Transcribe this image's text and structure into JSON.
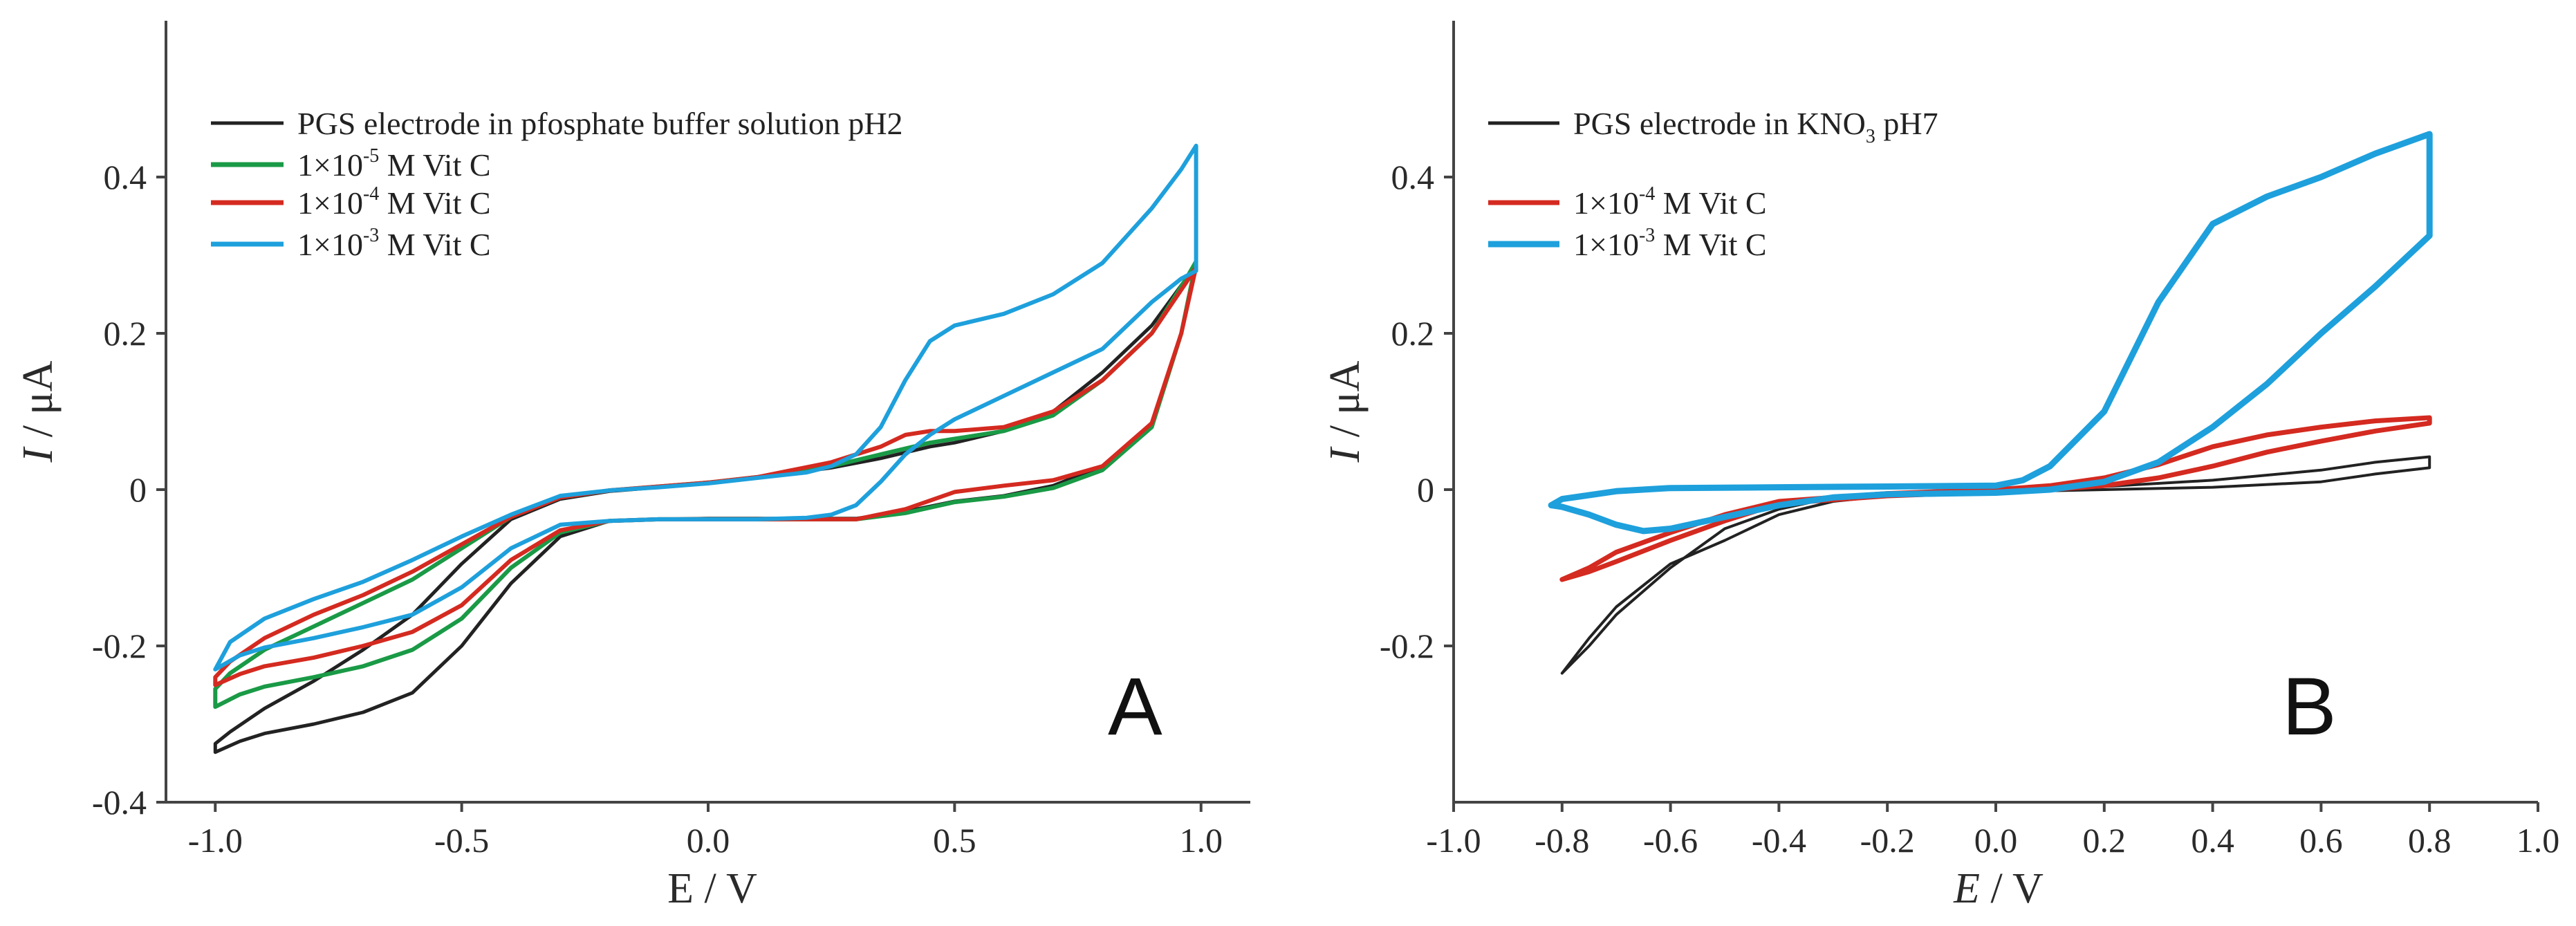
{
  "chart_data": [
    {
      "type": "line",
      "panel": "A",
      "xlabel": "E / V",
      "ylabel_italic": "I",
      "ylabel_rest": " / μA",
      "xlim": [
        -1.1,
        1.1
      ],
      "ylim": [
        -0.4,
        0.6
      ],
      "xticks": [
        -1.0,
        -0.5,
        0.0,
        0.5,
        1.0
      ],
      "xtick_labels": [
        "-1.0",
        "-0.5",
        "0.0",
        "0.5",
        "1.0"
      ],
      "yticks": [
        -0.4,
        -0.2,
        0,
        0.2,
        0.4
      ],
      "ytick_labels": [
        "-0.4",
        "-0.2",
        "0",
        "0.2",
        "0.4"
      ],
      "legend": [
        {
          "text": "PGS electrode in pfosphate buffer solution pH2",
          "base": "",
          "sup": "",
          "rest": "",
          "color": "#222222"
        },
        {
          "text": "",
          "base": "1×10",
          "sup": "-5",
          "rest": " M Vit C",
          "color": "#1a9a46"
        },
        {
          "text": "",
          "base": "1×10",
          "sup": "-4",
          "rest": " M Vit C",
          "color": "#d42a20"
        },
        {
          "text": "",
          "base": "1×10",
          "sup": "-3",
          "rest": " M Vit C",
          "color": "#1ea0dc"
        }
      ],
      "series": [
        {
          "name": "PGS electrode in pfosphate buffer solution pH2",
          "color": "#222222",
          "x": [
            -1.0,
            -0.95,
            -0.9,
            -0.8,
            -0.7,
            -0.6,
            -0.5,
            -0.4,
            -0.3,
            -0.2,
            -0.1,
            0.0,
            0.1,
            0.2,
            0.3,
            0.4,
            0.5,
            0.6,
            0.7,
            0.8,
            0.9,
            0.96,
            0.99,
            0.97,
            0.9,
            0.8,
            0.7,
            0.6,
            0.5,
            0.45,
            0.35,
            0.25,
            0.1,
            0.0,
            -0.1,
            -0.2,
            -0.3,
            -0.4,
            -0.5,
            -0.6,
            -0.7,
            -0.8,
            -0.9,
            -0.97,
            -1.0,
            -1.0
          ],
          "y": [
            -0.336,
            -0.322,
            -0.312,
            -0.3,
            -0.285,
            -0.26,
            -0.2,
            -0.12,
            -0.06,
            -0.04,
            -0.038,
            -0.037,
            -0.037,
            -0.037,
            -0.037,
            -0.028,
            -0.015,
            -0.008,
            0.005,
            0.03,
            0.085,
            0.2,
            0.285,
            0.27,
            0.21,
            0.15,
            0.1,
            0.075,
            0.06,
            0.055,
            0.04,
            0.028,
            0.015,
            0.008,
            0.003,
            -0.002,
            -0.012,
            -0.038,
            -0.095,
            -0.16,
            -0.205,
            -0.245,
            -0.28,
            -0.31,
            -0.325,
            -0.336
          ]
        },
        {
          "name": "1×10-5 M Vit C",
          "color": "#1a9a46",
          "x": [
            -1.0,
            -0.95,
            -0.9,
            -0.8,
            -0.7,
            -0.6,
            -0.5,
            -0.4,
            -0.3,
            -0.2,
            -0.1,
            0.0,
            0.1,
            0.2,
            0.3,
            0.4,
            0.5,
            0.6,
            0.7,
            0.8,
            0.9,
            0.96,
            0.99,
            0.97,
            0.9,
            0.8,
            0.7,
            0.6,
            0.5,
            0.45,
            0.35,
            0.25,
            0.1,
            0.0,
            -0.1,
            -0.2,
            -0.3,
            -0.4,
            -0.5,
            -0.6,
            -0.7,
            -0.8,
            -0.9,
            -0.97,
            -1.0,
            -1.0
          ],
          "y": [
            -0.278,
            -0.262,
            -0.252,
            -0.24,
            -0.226,
            -0.205,
            -0.165,
            -0.1,
            -0.055,
            -0.04,
            -0.038,
            -0.038,
            -0.038,
            -0.038,
            -0.038,
            -0.03,
            -0.016,
            -0.009,
            0.002,
            0.025,
            0.08,
            0.2,
            0.292,
            0.27,
            0.2,
            0.14,
            0.095,
            0.075,
            0.065,
            0.06,
            0.045,
            0.03,
            0.016,
            0.009,
            0.004,
            -0.001,
            -0.01,
            -0.035,
            -0.075,
            -0.115,
            -0.145,
            -0.175,
            -0.205,
            -0.235,
            -0.255,
            -0.278
          ]
        },
        {
          "name": "1×10-4 M Vit C",
          "color": "#d42a20",
          "x": [
            -1.0,
            -0.95,
            -0.9,
            -0.8,
            -0.7,
            -0.6,
            -0.5,
            -0.4,
            -0.3,
            -0.2,
            -0.1,
            0.0,
            0.1,
            0.2,
            0.3,
            0.4,
            0.5,
            0.6,
            0.7,
            0.8,
            0.9,
            0.96,
            0.99,
            0.97,
            0.9,
            0.8,
            0.7,
            0.6,
            0.5,
            0.45,
            0.4,
            0.35,
            0.25,
            0.1,
            0.0,
            -0.1,
            -0.2,
            -0.3,
            -0.4,
            -0.5,
            -0.6,
            -0.7,
            -0.8,
            -0.9,
            -0.97,
            -1.0,
            -1.0
          ],
          "y": [
            -0.25,
            -0.236,
            -0.226,
            -0.215,
            -0.2,
            -0.182,
            -0.148,
            -0.09,
            -0.052,
            -0.04,
            -0.038,
            -0.038,
            -0.038,
            -0.038,
            -0.038,
            -0.025,
            -0.003,
            0.005,
            0.012,
            0.03,
            0.085,
            0.2,
            0.285,
            0.265,
            0.2,
            0.14,
            0.1,
            0.08,
            0.075,
            0.075,
            0.07,
            0.055,
            0.035,
            0.016,
            0.009,
            0.004,
            -0.001,
            -0.01,
            -0.035,
            -0.07,
            -0.105,
            -0.135,
            -0.16,
            -0.19,
            -0.22,
            -0.24,
            -0.25
          ]
        },
        {
          "name": "1×10-3 M Vit C",
          "color": "#1ea0dc",
          "x": [
            -1.0,
            -0.95,
            -0.9,
            -0.8,
            -0.7,
            -0.6,
            -0.5,
            -0.4,
            -0.3,
            -0.2,
            -0.1,
            0.0,
            0.1,
            0.2,
            0.25,
            0.3,
            0.35,
            0.4,
            0.45,
            0.5,
            0.6,
            0.7,
            0.8,
            0.9,
            0.96,
            0.99,
            0.99,
            0.96,
            0.9,
            0.8,
            0.7,
            0.6,
            0.5,
            0.45,
            0.4,
            0.35,
            0.3,
            0.25,
            0.2,
            0.1,
            0.0,
            -0.1,
            -0.2,
            -0.3,
            -0.4,
            -0.5,
            -0.6,
            -0.7,
            -0.8,
            -0.9,
            -0.97,
            -1.0
          ],
          "y": [
            -0.23,
            -0.212,
            -0.202,
            -0.19,
            -0.176,
            -0.16,
            -0.125,
            -0.075,
            -0.045,
            -0.04,
            -0.038,
            -0.038,
            -0.038,
            -0.036,
            -0.032,
            -0.02,
            0.01,
            0.045,
            0.07,
            0.09,
            0.12,
            0.15,
            0.18,
            0.24,
            0.27,
            0.28,
            0.44,
            0.41,
            0.36,
            0.29,
            0.25,
            0.225,
            0.21,
            0.19,
            0.14,
            0.08,
            0.045,
            0.03,
            0.022,
            0.015,
            0.008,
            0.003,
            -0.001,
            -0.008,
            -0.032,
            -0.06,
            -0.09,
            -0.118,
            -0.14,
            -0.165,
            -0.195,
            -0.23
          ]
        }
      ]
    },
    {
      "type": "line",
      "panel": "B",
      "xlabel_italic": "E",
      "xlabel_rest": " / V",
      "ylabel_italic": "I",
      "ylabel_rest": " / μA",
      "xlim": [
        -1.0,
        1.0
      ],
      "ylim": [
        -0.4,
        0.6
      ],
      "xticks": [
        -1.0,
        -0.8,
        -0.6,
        -0.4,
        -0.2,
        0.0,
        0.2,
        0.4,
        0.6,
        0.8,
        1.0
      ],
      "xtick_labels": [
        "-1.0",
        "-0.8",
        "-0.6",
        "-0.4",
        "-0.2",
        "0.0",
        "0.2",
        "0.4",
        "0.6",
        "0.8",
        "1.0"
      ],
      "yticks": [
        -0.2,
        0,
        0.2,
        0.4
      ],
      "ytick_labels": [
        "-0.2",
        "0",
        "0.2",
        "0.4"
      ],
      "legend": [
        {
          "text": "",
          "base": "PGS electrode in KNO",
          "sub": "3",
          "rest": " pH7",
          "color": "#222222"
        },
        {
          "text": "",
          "base": "1×10",
          "sup": "-4",
          "rest": " M Vit C",
          "color": "#d42a20"
        },
        {
          "text": "",
          "base": "1×10",
          "sup": "-3",
          "rest": " M Vit C",
          "color": "#1ea0dc"
        }
      ],
      "series": [
        {
          "name": "PGS electrode in KNO3 pH7",
          "color": "#222222",
          "x": [
            -0.8,
            -0.75,
            -0.7,
            -0.6,
            -0.5,
            -0.4,
            -0.3,
            -0.2,
            0.0,
            0.2,
            0.4,
            0.6,
            0.7,
            0.8,
            0.8,
            0.7,
            0.6,
            0.4,
            0.2,
            0.0,
            -0.2,
            -0.3,
            -0.4,
            -0.5,
            -0.6,
            -0.7,
            -0.75,
            -0.8
          ],
          "y": [
            -0.235,
            -0.19,
            -0.15,
            -0.095,
            -0.065,
            -0.032,
            -0.015,
            -0.008,
            -0.003,
            0.0,
            0.003,
            0.01,
            0.02,
            0.028,
            0.042,
            0.035,
            0.025,
            0.012,
            0.004,
            0.0,
            -0.005,
            -0.01,
            -0.025,
            -0.05,
            -0.1,
            -0.16,
            -0.2,
            -0.235
          ]
        },
        {
          "name": "1×10-4 M Vit C",
          "color": "#d42a20",
          "x": [
            -0.8,
            -0.75,
            -0.7,
            -0.6,
            -0.5,
            -0.4,
            -0.2,
            0.0,
            0.1,
            0.2,
            0.3,
            0.4,
            0.5,
            0.6,
            0.7,
            0.8,
            0.8,
            0.7,
            0.6,
            0.5,
            0.4,
            0.3,
            0.2,
            0.1,
            0.0,
            -0.2,
            -0.4,
            -0.5,
            -0.6,
            -0.7,
            -0.75,
            -0.8
          ],
          "y": [
            -0.115,
            -0.105,
            -0.092,
            -0.065,
            -0.04,
            -0.018,
            -0.008,
            -0.003,
            0.0,
            0.005,
            0.015,
            0.03,
            0.048,
            0.062,
            0.075,
            0.085,
            0.092,
            0.088,
            0.08,
            0.07,
            0.055,
            0.032,
            0.015,
            0.005,
            0.0,
            -0.005,
            -0.015,
            -0.032,
            -0.055,
            -0.08,
            -0.1,
            -0.115
          ]
        },
        {
          "name": "1×10-3 M Vit C",
          "color": "#1ea0dc",
          "x": [
            -0.82,
            -0.8,
            -0.75,
            -0.7,
            -0.65,
            -0.6,
            -0.5,
            -0.4,
            -0.3,
            -0.2,
            0.0,
            0.1,
            0.2,
            0.3,
            0.4,
            0.5,
            0.6,
            0.7,
            0.8,
            0.8,
            0.7,
            0.6,
            0.5,
            0.4,
            0.3,
            0.2,
            0.1,
            0.05,
            0.0,
            -0.2,
            -0.4,
            -0.6,
            -0.7,
            -0.8,
            -0.82
          ],
          "y": [
            -0.02,
            -0.022,
            -0.032,
            -0.045,
            -0.053,
            -0.05,
            -0.035,
            -0.02,
            -0.01,
            -0.006,
            -0.004,
            0.0,
            0.01,
            0.035,
            0.08,
            0.135,
            0.2,
            0.26,
            0.325,
            0.455,
            0.43,
            0.4,
            0.375,
            0.34,
            0.24,
            0.1,
            0.03,
            0.012,
            0.005,
            0.004,
            0.003,
            0.002,
            -0.002,
            -0.012,
            -0.02
          ]
        }
      ]
    }
  ],
  "panels": {
    "a": {
      "letter": "A"
    },
    "b": {
      "letter": "B"
    }
  }
}
